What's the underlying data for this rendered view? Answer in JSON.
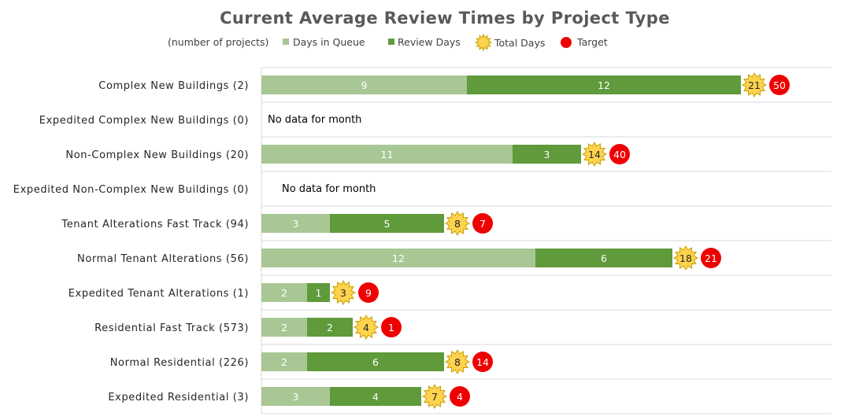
{
  "chart_data": {
    "type": "bar",
    "orientation": "horizontal",
    "stacked": true,
    "title": "Current Average Review Times by Project Type",
    "legend": {
      "note": "(number of projects)",
      "placement": "top",
      "entries": [
        "Days in Queue",
        "Review Days",
        "Total Days",
        "Target"
      ]
    },
    "categories": [
      "Complex New Buildings (2)",
      "Expedited Complex New Buildings (0)",
      "Non-Complex New Buildings (20)",
      "Expedited Non-Complex New Buildings (0)",
      "Tenant Alterations Fast Track (94)",
      "Normal Tenant Alterations (56)",
      "Expedited Tenant Alterations (1)",
      "Residential Fast Track (573)",
      "Normal Residential (226)",
      "Expedited Residential  (3)"
    ],
    "series": [
      {
        "name": "Days in Queue",
        "color": "#a9c795",
        "values": [
          9,
          null,
          11,
          null,
          3,
          12,
          2,
          2,
          2,
          3
        ]
      },
      {
        "name": "Review Days",
        "color": "#5f9a3b",
        "values": [
          12,
          null,
          3,
          null,
          5,
          6,
          1,
          2,
          6,
          4
        ]
      }
    ],
    "total_days": [
      21,
      null,
      14,
      null,
      8,
      18,
      3,
      4,
      8,
      7
    ],
    "target": [
      50,
      null,
      40,
      null,
      7,
      21,
      9,
      1,
      14,
      4
    ],
    "no_data_text": "No data for month",
    "gridlines": "horizontal separators",
    "colors": {
      "total_marker": "#ffd34d",
      "total_marker_edge": "#c9a000",
      "target_marker": "#ee0000",
      "separator": "#d9d9d9"
    }
  }
}
